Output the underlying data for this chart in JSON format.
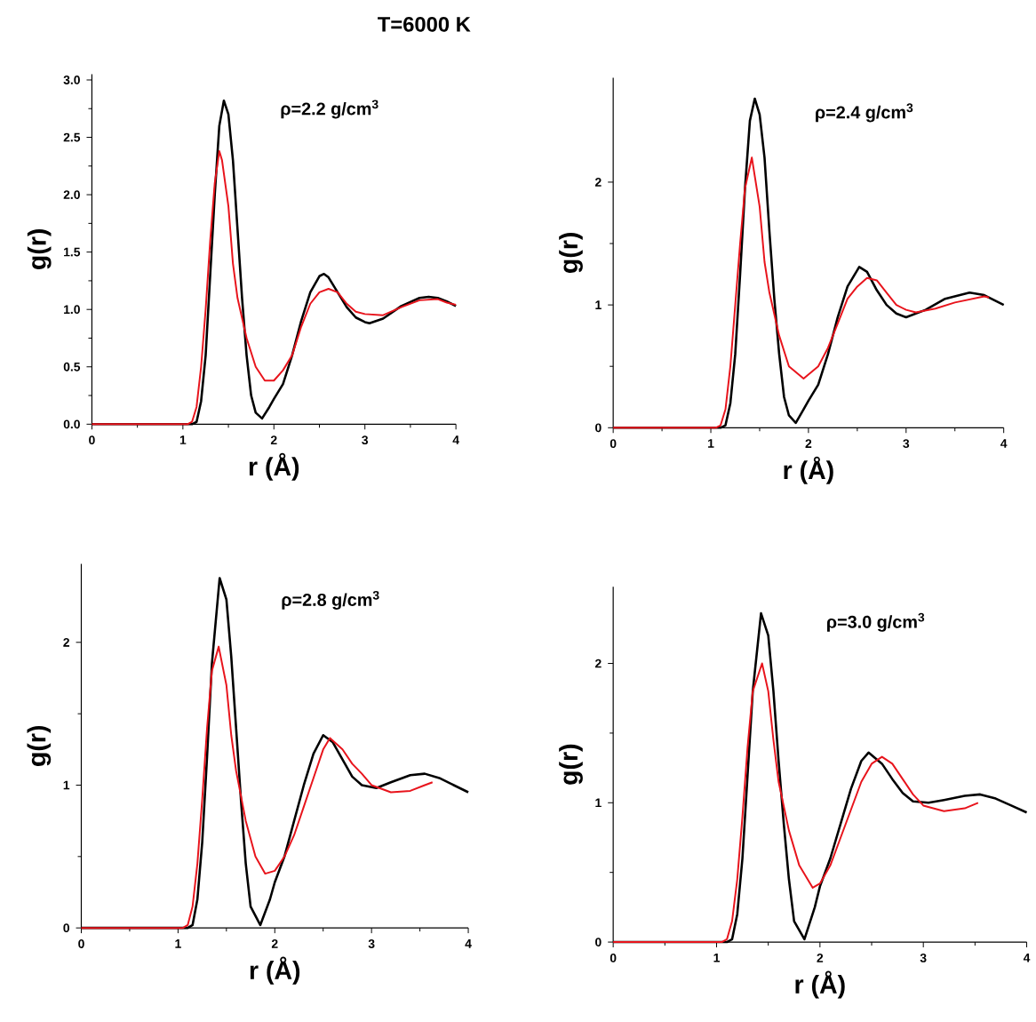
{
  "chart_data": [
    {
      "type": "line",
      "title": "T=6000 K",
      "xlabel": "r (Å)",
      "ylabel": "g(r)",
      "annotations": [
        "ρ=2.2 g/cm$^{3}$"
      ],
      "xlim": [
        0,
        4
      ],
      "ylim": [
        0,
        3.05
      ],
      "xticks": [
        0,
        1,
        2,
        3,
        4
      ],
      "yticks": [
        {
          "value": 0,
          "label": "0.0"
        },
        {
          "value": 0.5,
          "label": "0.5"
        },
        {
          "value": 1,
          "label": "1.0"
        },
        {
          "value": 1.5,
          "label": "1.5"
        },
        {
          "value": 2,
          "label": "2.0"
        },
        {
          "value": 2.5,
          "label": "2.5"
        },
        {
          "value": 3,
          "label": "3.0"
        }
      ],
      "grid": false,
      "marker": "none",
      "line_style": "solid",
      "series": [
        {
          "color": "#000000",
          "x": [
            0,
            1.1,
            1.15,
            1.2,
            1.25,
            1.3,
            1.35,
            1.4,
            1.45,
            1.5,
            1.55,
            1.6,
            1.65,
            1.7,
            1.75,
            1.8,
            1.87,
            1.95,
            2.0,
            2.1,
            2.2,
            2.3,
            2.4,
            2.5,
            2.55,
            2.6,
            2.7,
            2.8,
            2.9,
            3.0,
            3.05,
            3.2,
            3.4,
            3.6,
            3.7,
            3.8,
            3.9,
            4.0
          ],
          "values": [
            0,
            0,
            0.02,
            0.2,
            0.6,
            1.3,
            2.0,
            2.6,
            2.82,
            2.7,
            2.3,
            1.7,
            1.1,
            0.6,
            0.25,
            0.1,
            0.05,
            0.15,
            0.22,
            0.35,
            0.6,
            0.9,
            1.15,
            1.29,
            1.31,
            1.28,
            1.15,
            1.02,
            0.93,
            0.89,
            0.88,
            0.92,
            1.03,
            1.1,
            1.11,
            1.1,
            1.07,
            1.03
          ]
        },
        {
          "color": "#e8141c",
          "x": [
            0,
            1.05,
            1.1,
            1.15,
            1.2,
            1.25,
            1.3,
            1.35,
            1.4,
            1.43,
            1.5,
            1.55,
            1.6,
            1.7,
            1.8,
            1.9,
            2.0,
            2.1,
            2.2,
            2.3,
            2.4,
            2.5,
            2.6,
            2.7,
            2.8,
            2.9,
            3.0,
            3.2,
            3.4,
            3.6,
            3.8,
            3.9,
            4.0
          ],
          "values": [
            0,
            0,
            0.02,
            0.15,
            0.5,
            1.0,
            1.6,
            2.1,
            2.38,
            2.3,
            1.9,
            1.4,
            1.1,
            0.75,
            0.5,
            0.38,
            0.38,
            0.47,
            0.6,
            0.85,
            1.05,
            1.15,
            1.18,
            1.15,
            1.05,
            0.98,
            0.96,
            0.95,
            1.02,
            1.08,
            1.09,
            1.06,
            1.04
          ]
        }
      ]
    },
    {
      "type": "line",
      "xlabel": "r (Å)",
      "ylabel": "g(r)",
      "annotations": [
        "ρ=2.4 g/cm$^{3}$"
      ],
      "xlim": [
        0,
        4
      ],
      "ylim": [
        0,
        2.85
      ],
      "xticks": [
        0,
        1,
        2,
        3,
        4
      ],
      "yticks": [
        0,
        1,
        2
      ],
      "grid": false,
      "marker": "none",
      "line_style": "solid",
      "series": [
        {
          "color": "#000000",
          "x": [
            0,
            1.1,
            1.15,
            1.2,
            1.25,
            1.3,
            1.35,
            1.4,
            1.45,
            1.5,
            1.55,
            1.6,
            1.65,
            1.7,
            1.75,
            1.8,
            1.87,
            1.95,
            2.0,
            2.1,
            2.2,
            2.3,
            2.4,
            2.52,
            2.6,
            2.7,
            2.8,
            2.9,
            3.0,
            3.2,
            3.4,
            3.65,
            3.8,
            3.9,
            4.0
          ],
          "values": [
            0,
            0,
            0.02,
            0.2,
            0.6,
            1.25,
            1.95,
            2.5,
            2.68,
            2.55,
            2.2,
            1.6,
            1.05,
            0.6,
            0.25,
            0.1,
            0.04,
            0.15,
            0.22,
            0.35,
            0.6,
            0.9,
            1.15,
            1.31,
            1.27,
            1.12,
            1.0,
            0.93,
            0.9,
            0.96,
            1.05,
            1.1,
            1.08,
            1.04,
            1.0
          ]
        },
        {
          "color": "#e8141c",
          "x": [
            0,
            1.05,
            1.1,
            1.15,
            1.2,
            1.25,
            1.3,
            1.35,
            1.42,
            1.5,
            1.55,
            1.6,
            1.7,
            1.8,
            1.95,
            2.1,
            2.2,
            2.3,
            2.4,
            2.5,
            2.6,
            2.7,
            2.8,
            2.9,
            3.0,
            3.1,
            3.3,
            3.5,
            3.8,
            3.85
          ],
          "values": [
            0,
            0,
            0.02,
            0.15,
            0.5,
            1.0,
            1.5,
            1.95,
            2.2,
            1.8,
            1.35,
            1.1,
            0.75,
            0.5,
            0.4,
            0.5,
            0.65,
            0.85,
            1.05,
            1.15,
            1.22,
            1.2,
            1.1,
            1.0,
            0.96,
            0.94,
            0.97,
            1.02,
            1.07,
            1.06
          ]
        }
      ]
    },
    {
      "type": "line",
      "xlabel": "r (Å)",
      "ylabel": "g(r)",
      "annotations": [
        "ρ=2.8 g/cm$^{3}$"
      ],
      "xlim": [
        0,
        4
      ],
      "ylim": [
        0,
        2.55
      ],
      "xticks": [
        0,
        1,
        2,
        3,
        4
      ],
      "yticks": [
        0,
        1,
        2
      ],
      "grid": false,
      "marker": "none",
      "line_style": "solid",
      "series": [
        {
          "color": "#000000",
          "x": [
            0,
            1.1,
            1.15,
            1.2,
            1.25,
            1.3,
            1.35,
            1.43,
            1.5,
            1.55,
            1.6,
            1.65,
            1.7,
            1.75,
            1.85,
            1.95,
            2.0,
            2.1,
            2.2,
            2.3,
            2.4,
            2.5,
            2.6,
            2.7,
            2.8,
            2.9,
            3.05,
            3.2,
            3.4,
            3.55,
            3.7,
            3.85,
            4.0
          ],
          "values": [
            0,
            0,
            0.02,
            0.2,
            0.6,
            1.2,
            1.85,
            2.45,
            2.3,
            1.9,
            1.4,
            0.9,
            0.45,
            0.15,
            0.02,
            0.2,
            0.32,
            0.5,
            0.75,
            1.0,
            1.22,
            1.35,
            1.3,
            1.18,
            1.06,
            1.0,
            0.98,
            1.02,
            1.07,
            1.08,
            1.05,
            1.0,
            0.95
          ]
        },
        {
          "color": "#e8141c",
          "x": [
            0,
            1.05,
            1.1,
            1.15,
            1.2,
            1.25,
            1.3,
            1.35,
            1.42,
            1.5,
            1.55,
            1.6,
            1.7,
            1.8,
            1.9,
            2.0,
            2.1,
            2.2,
            2.3,
            2.4,
            2.5,
            2.57,
            2.7,
            2.8,
            2.9,
            3.0,
            3.2,
            3.4,
            3.55,
            3.63
          ],
          "values": [
            0,
            0,
            0.02,
            0.15,
            0.45,
            0.9,
            1.4,
            1.8,
            1.97,
            1.7,
            1.35,
            1.1,
            0.75,
            0.5,
            0.38,
            0.4,
            0.5,
            0.65,
            0.85,
            1.05,
            1.25,
            1.33,
            1.25,
            1.15,
            1.08,
            1.0,
            0.95,
            0.96,
            1.0,
            1.02
          ]
        }
      ]
    },
    {
      "type": "line",
      "xlabel": "r (Å)",
      "ylabel": "g(r)",
      "annotations": [
        "ρ=3.0 g/cm$^{3}$"
      ],
      "xlim": [
        0,
        4
      ],
      "ylim": [
        0,
        2.55
      ],
      "xticks": [
        0,
        1,
        2,
        3,
        4
      ],
      "yticks": [
        0,
        1,
        2
      ],
      "grid": false,
      "marker": "none",
      "line_style": "solid",
      "series": [
        {
          "color": "#000000",
          "x": [
            0,
            1.1,
            1.15,
            1.2,
            1.25,
            1.3,
            1.35,
            1.43,
            1.5,
            1.55,
            1.6,
            1.65,
            1.7,
            1.75,
            1.85,
            1.95,
            2.0,
            2.1,
            2.2,
            2.3,
            2.4,
            2.47,
            2.6,
            2.7,
            2.8,
            2.9,
            3.05,
            3.2,
            3.4,
            3.55,
            3.7,
            3.85,
            4.0
          ],
          "values": [
            0,
            0,
            0.02,
            0.2,
            0.6,
            1.2,
            1.8,
            2.36,
            2.2,
            1.8,
            1.3,
            0.85,
            0.45,
            0.15,
            0.02,
            0.25,
            0.4,
            0.6,
            0.85,
            1.1,
            1.3,
            1.36,
            1.28,
            1.17,
            1.07,
            1.01,
            1.0,
            1.02,
            1.05,
            1.06,
            1.03,
            0.98,
            0.93
          ]
        },
        {
          "color": "#e8141c",
          "x": [
            0,
            1.05,
            1.1,
            1.15,
            1.2,
            1.25,
            1.3,
            1.35,
            1.44,
            1.5,
            1.55,
            1.6,
            1.7,
            1.8,
            1.93,
            2.0,
            2.1,
            2.2,
            2.3,
            2.4,
            2.5,
            2.6,
            2.7,
            2.8,
            2.9,
            3.0,
            3.2,
            3.4,
            3.53
          ],
          "values": [
            0,
            0,
            0.02,
            0.15,
            0.45,
            0.9,
            1.4,
            1.8,
            2.0,
            1.8,
            1.45,
            1.15,
            0.8,
            0.55,
            0.39,
            0.42,
            0.55,
            0.75,
            0.95,
            1.15,
            1.28,
            1.33,
            1.28,
            1.17,
            1.06,
            0.98,
            0.94,
            0.96,
            1.0
          ]
        }
      ]
    }
  ]
}
